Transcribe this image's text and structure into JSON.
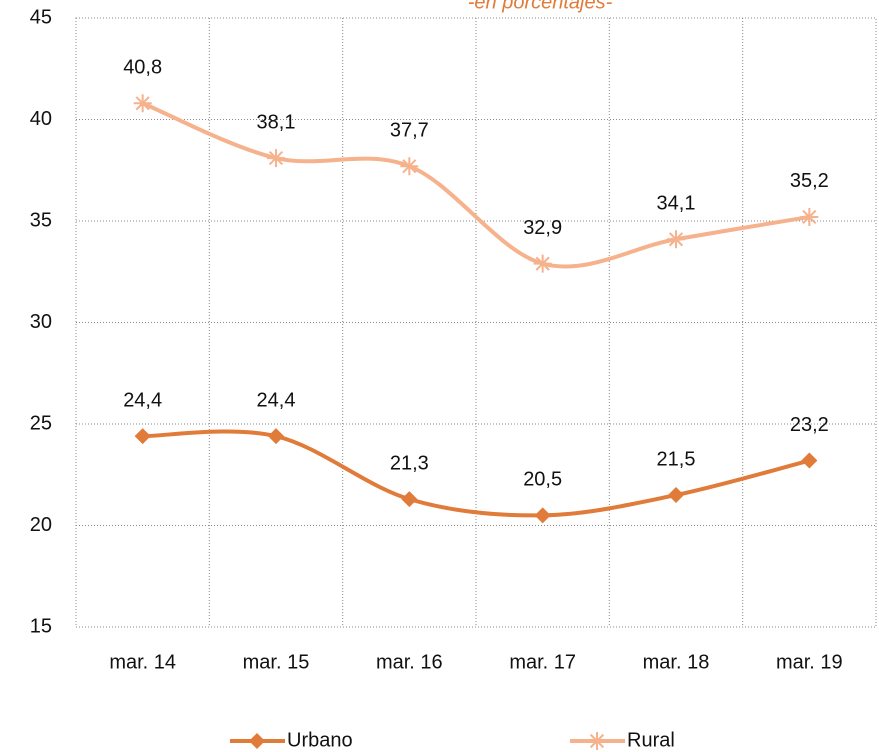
{
  "chart_data": {
    "type": "line",
    "subtitle": "-en porcentajes-",
    "categories": [
      "mar. 14",
      "mar. 15",
      "mar. 16",
      "mar. 17",
      "mar. 18",
      "mar. 19"
    ],
    "series": [
      {
        "name": "Urbano",
        "color": "#e07b39",
        "marker": "diamond",
        "values": [
          24.4,
          24.4,
          21.3,
          20.5,
          21.5,
          23.2
        ],
        "value_labels": [
          "24,4",
          "24,4",
          "21,3",
          "20,5",
          "21,5",
          "23,2"
        ]
      },
      {
        "name": "Rural",
        "color": "#f5b28c",
        "marker": "asterisk",
        "values": [
          40.8,
          38.1,
          37.7,
          32.9,
          34.1,
          35.2
        ],
        "value_labels": [
          "40,8",
          "38,1",
          "37,7",
          "32,9",
          "34,1",
          "35,2"
        ]
      }
    ],
    "ylim": [
      15,
      45
    ],
    "yticks": [
      15,
      20,
      25,
      30,
      35,
      40,
      45
    ],
    "grid": true,
    "smooth": true,
    "legend": "bottom"
  }
}
